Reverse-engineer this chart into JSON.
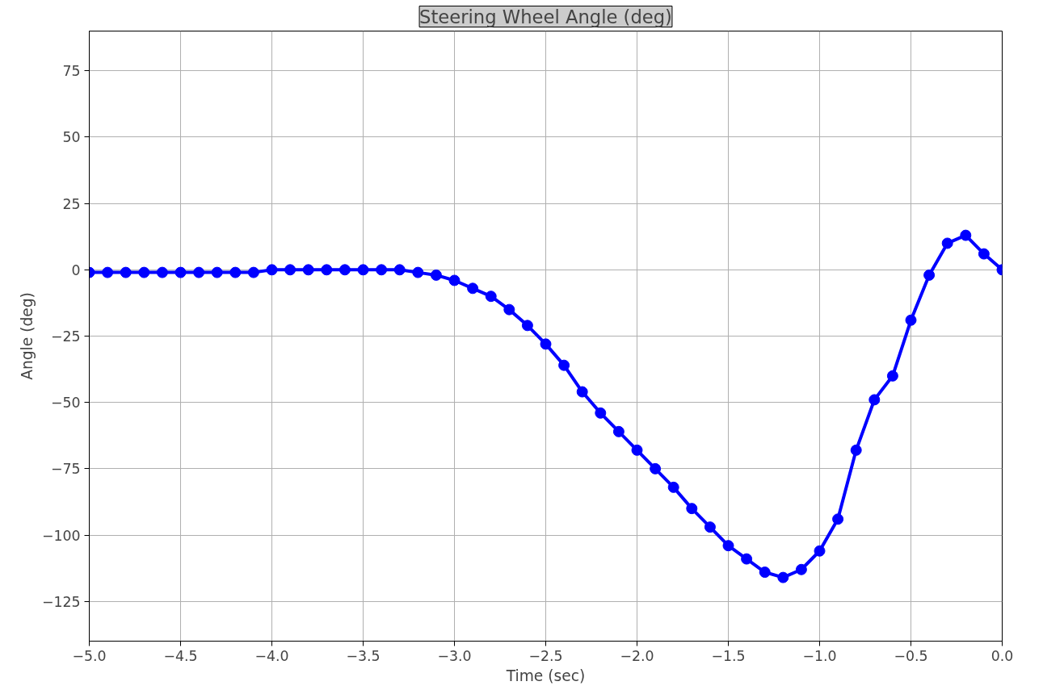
{
  "chart_data": {
    "type": "line",
    "title": "Steering Wheel Angle (deg)",
    "xlabel": "Time (sec)",
    "ylabel": "Angle (deg)",
    "x": [
      -5.0,
      -4.9,
      -4.8,
      -4.7,
      -4.6,
      -4.5,
      -4.4,
      -4.3,
      -4.2,
      -4.1,
      -4.0,
      -3.9,
      -3.8,
      -3.7,
      -3.6,
      -3.5,
      -3.4,
      -3.3,
      -3.2,
      -3.1,
      -3.0,
      -2.9,
      -2.8,
      -2.7,
      -2.6,
      -2.5,
      -2.4,
      -2.3,
      -2.2,
      -2.1,
      -2.0,
      -1.9,
      -1.8,
      -1.7,
      -1.6,
      -1.5,
      -1.4,
      -1.3,
      -1.2,
      -1.1,
      -1.0,
      -0.9,
      -0.8,
      -0.7,
      -0.6,
      -0.5,
      -0.4,
      -0.3,
      -0.2,
      -0.1,
      0.0
    ],
    "series": [
      {
        "color": "#0000ff",
        "values": [
          -1,
          -1,
          -1,
          -1,
          -1,
          -1,
          -1,
          -1,
          -1,
          -1,
          0,
          0,
          0,
          0,
          0,
          0,
          0,
          0,
          -1,
          -2,
          -4,
          -7,
          -10,
          -15,
          -21,
          -28,
          -36,
          -46,
          -54,
          -61,
          -68,
          -75,
          -82,
          -90,
          -97,
          -104,
          -109,
          -114,
          -116,
          -113,
          -106,
          -94,
          -68,
          -49,
          -40,
          -19,
          -2,
          10,
          13,
          6,
          0
        ]
      }
    ],
    "xlim": [
      -5.0,
      0.0
    ],
    "ylim": [
      -140,
      90
    ],
    "xticks": [
      {
        "value": -5.0,
        "label": "−5.0"
      },
      {
        "value": -4.5,
        "label": "−4.5"
      },
      {
        "value": -4.0,
        "label": "−4.0"
      },
      {
        "value": -3.5,
        "label": "−3.5"
      },
      {
        "value": -3.0,
        "label": "−3.0"
      },
      {
        "value": -2.5,
        "label": "−2.5"
      },
      {
        "value": -2.0,
        "label": "−2.0"
      },
      {
        "value": -1.5,
        "label": "−1.5"
      },
      {
        "value": -1.0,
        "label": "−1.0"
      },
      {
        "value": -0.5,
        "label": "−0.5"
      },
      {
        "value": 0.0,
        "label": "0.0"
      }
    ],
    "yticks": [
      {
        "value": -125,
        "label": "−125"
      },
      {
        "value": -100,
        "label": "−100"
      },
      {
        "value": -75,
        "label": "−75"
      },
      {
        "value": -50,
        "label": "−50"
      },
      {
        "value": -25,
        "label": "−25"
      },
      0,
      25,
      50,
      75
    ],
    "grid": true,
    "marker": "circle",
    "line_style": "solid"
  }
}
